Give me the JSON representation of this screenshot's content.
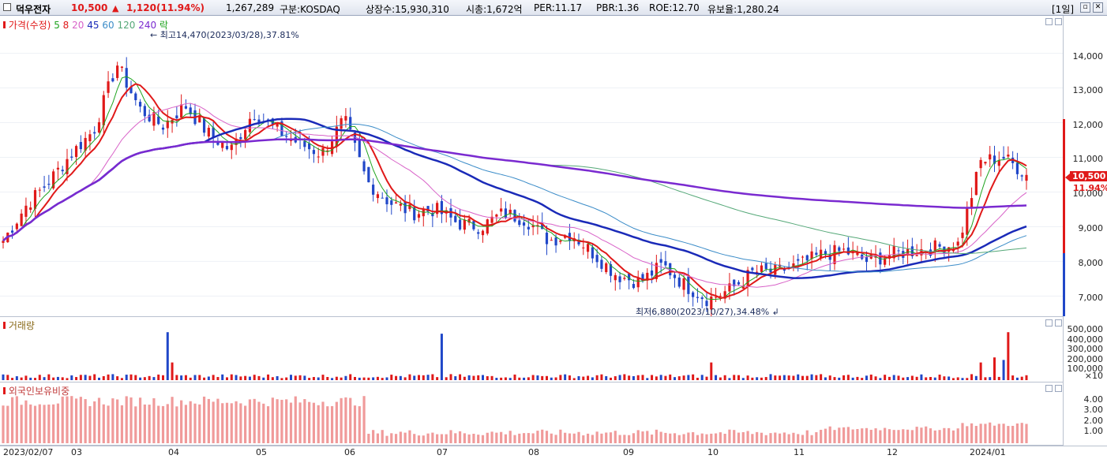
{
  "header": {
    "stock_name": "덕우전자",
    "price": "10,500",
    "change_arrow": "▲",
    "change": "1,120",
    "change_pct": "(11.94%)",
    "volume": "1,267,289",
    "market": "구분:KOSDAQ",
    "shares": "상장수:15,930,310",
    "mcap": "시총:1,672억",
    "per": "PER:11.17",
    "pbr": "PBR:1.36",
    "roe": "ROE:12.70",
    "reserve": "유보율:1,280.24",
    "period": "[1일]",
    "colors": {
      "up": "#e01919",
      "down": "#2047c8"
    }
  },
  "price_legend": {
    "title": "가격(수정)",
    "ma": [
      "5",
      "8",
      "20",
      "45",
      "60",
      "120",
      "240"
    ],
    "tail": "락",
    "ma_colors": [
      "#1ea31e",
      "#e01919",
      "#d862c8",
      "#1a2ab8",
      "#3b8cc8",
      "#55a878",
      "#7a2ad0"
    ]
  },
  "annotations": {
    "high": "최고14,470(2023/03/28),37.81%",
    "low": "최저6,880(2023/10/27),34.48%"
  },
  "price_axis": [
    "14,000",
    "13,000",
    "12,000",
    "11,000",
    "10,000",
    "9,000",
    "8,000",
    "7,000"
  ],
  "last_price_tag": "10,500",
  "last_pct_tag": "11.94%",
  "volume_pane": {
    "title": "거래량",
    "axis": [
      "500,000",
      "400,000",
      "300,000",
      "200,000",
      "100,000"
    ],
    "unit": "×10"
  },
  "foreign_pane": {
    "title": "외국인보유비중",
    "axis": [
      "4.00",
      "3.00",
      "2.00",
      "1.00"
    ]
  },
  "x_axis": [
    "2023/02/07",
    "03",
    "04",
    "05",
    "06",
    "07",
    "08",
    "09",
    "10",
    "11",
    "12",
    "2024/01"
  ],
  "chart_data": {
    "type": "candlestick",
    "price_range": [
      6600,
      14900
    ],
    "price_approx_close": [
      8600,
      9600,
      10300,
      11100,
      11800,
      13700,
      12400,
      11900,
      12500,
      11700,
      11200,
      12300,
      11800,
      11400,
      11100,
      12100,
      10300,
      9700,
      9400,
      9500,
      9100,
      9000,
      9400,
      9200,
      8600,
      8800,
      8200,
      7600,
      7400,
      7900,
      7300,
      6900,
      7200,
      7700,
      7700,
      7900,
      8200,
      8300,
      8000,
      8200,
      8300,
      8400,
      8500,
      10900,
      11000,
      10500
    ],
    "volume_spikes": [
      "2023/03/13",
      "2023/07/17",
      "2023/11/20",
      "2024/01"
    ],
    "foreign_ratio_max": 4.5,
    "series": [
      {
        "name": "45",
        "color": "#1a2ab8"
      },
      {
        "name": "240",
        "color": "#7a2ad0"
      }
    ]
  }
}
